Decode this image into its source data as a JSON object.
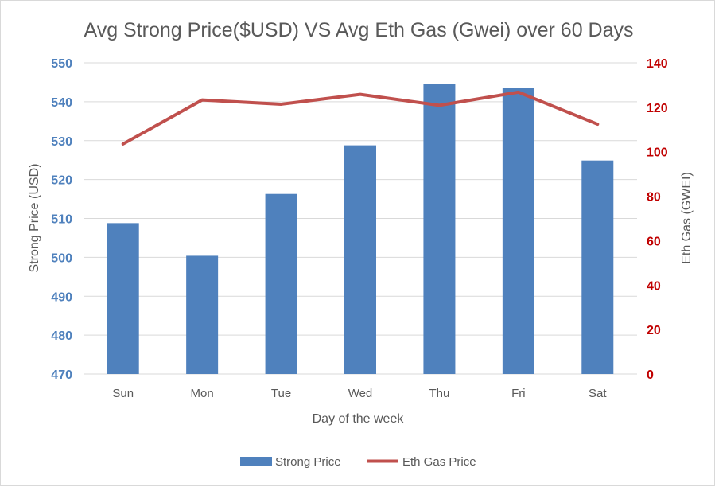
{
  "chart_data": {
    "type": "bar",
    "title": "Avg Strong Price($USD) VS Avg Eth Gas (Gwei) over 60 Days",
    "xlabel": "Day of the week",
    "ylabel": "Strong Price (USD)",
    "y2label": "Eth Gas (GWEI)",
    "categories": [
      "Sun",
      "Mon",
      "Tue",
      "Wed",
      "Thu",
      "Fri",
      "Sat"
    ],
    "ylim": [
      470,
      550
    ],
    "y2lim": [
      0,
      140
    ],
    "yticks": [
      "470",
      "480",
      "490",
      "500",
      "510",
      "520",
      "530",
      "540",
      "550"
    ],
    "y2ticks": [
      "0",
      "20",
      "40",
      "60",
      "80",
      "100",
      "120",
      "140"
    ],
    "grid": true,
    "legend_position": "bottom",
    "series": [
      {
        "name": "Strong Price",
        "type": "bar",
        "axis": "left",
        "color": "#4F81BD",
        "values": [
          508.8,
          500.4,
          516.3,
          528.8,
          544.6,
          543.6,
          524.9
        ]
      },
      {
        "name": "Eth Gas Price",
        "type": "line",
        "axis": "right",
        "color": "#C0504D",
        "values": [
          103.5,
          123.3,
          121.4,
          125.8,
          120.9,
          126.8,
          112.4
        ]
      }
    ],
    "left_axis_color": "#4F81BD",
    "right_axis_color": "#C00000"
  }
}
